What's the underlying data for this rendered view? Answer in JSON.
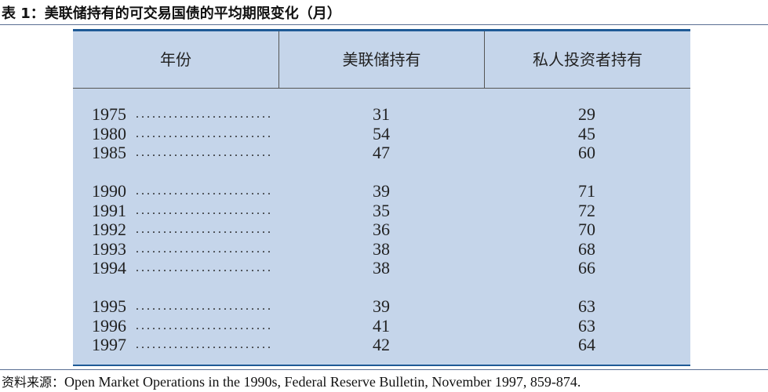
{
  "title": "表 1：美联储持有的可交易国债的平均期限变化（月）",
  "table": {
    "header": [
      "年份",
      "美联储持有",
      "私人投资者持有"
    ],
    "groups": [
      {
        "rows": [
          [
            1975,
            31,
            29
          ],
          [
            1980,
            54,
            45
          ],
          [
            1985,
            47,
            60
          ]
        ]
      },
      {
        "rows": [
          [
            1990,
            39,
            71
          ],
          [
            1991,
            35,
            72
          ],
          [
            1992,
            36,
            70
          ],
          [
            1993,
            38,
            68
          ],
          [
            1994,
            38,
            66
          ]
        ]
      },
      {
        "rows": [
          [
            1995,
            39,
            63
          ],
          [
            1996,
            41,
            63
          ],
          [
            1997,
            42,
            64
          ]
        ]
      }
    ]
  },
  "source": {
    "label": "资料来源：",
    "text": "Open Market Operations in the 1990s, Federal Reserve Bulletin, November 1997, 859-874."
  }
}
